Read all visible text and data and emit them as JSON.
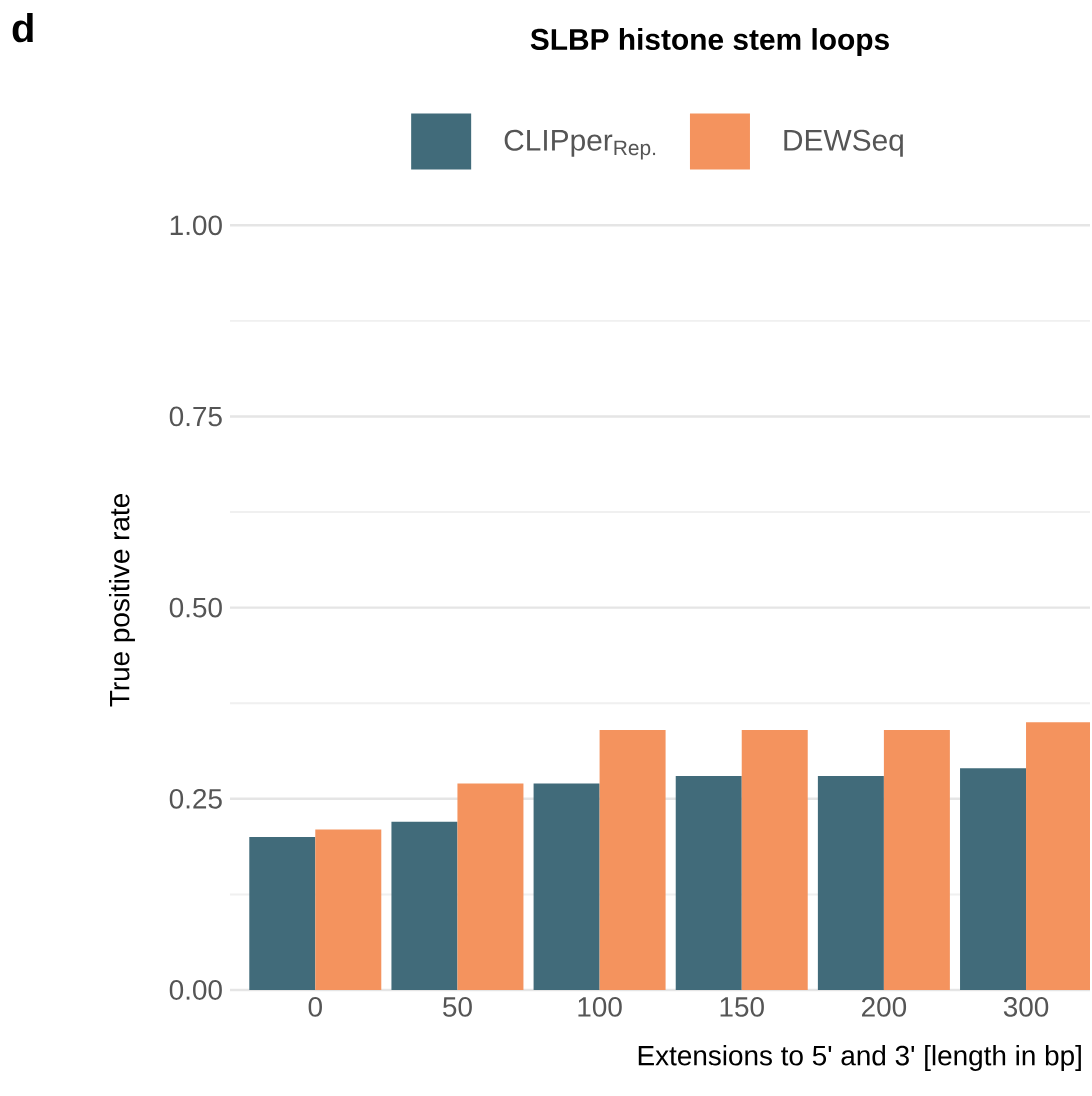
{
  "chart_data": {
    "type": "bar",
    "title": "SLBP histone stem loops",
    "annotations": [
      "d"
    ],
    "xlabel": "Extensions to 5' and 3' [length in bp]",
    "ylabel": "True positive rate",
    "categories": [
      "0",
      "50",
      "100",
      "150",
      "200",
      "300"
    ],
    "series": [
      {
        "name": "CLIPper$_{Rep.}$",
        "color": "#416b7a",
        "values": [
          0.2,
          0.22,
          0.27,
          0.28,
          0.28,
          0.29
        ]
      },
      {
        "name": "DEWSeq",
        "color": "#f4935e",
        "values": [
          0.21,
          0.27,
          0.34,
          0.34,
          0.34,
          0.35
        ]
      }
    ],
    "ylim": [
      0,
      1
    ],
    "yticks": [
      {
        "value": 0,
        "label": "0.00"
      },
      {
        "value": 0.25,
        "label": "0.25"
      },
      {
        "value": 0.5,
        "label": "0.50"
      },
      {
        "value": 0.75,
        "label": "0.75"
      },
      {
        "value": 1,
        "label": "1.00"
      }
    ],
    "grid": "y",
    "legend": "top"
  }
}
